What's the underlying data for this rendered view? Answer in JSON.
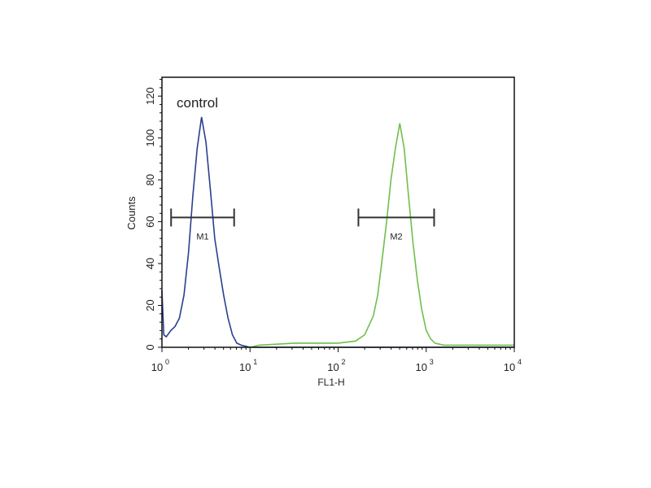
{
  "chart_data": {
    "type": "line",
    "title": "",
    "xlabel": "FL1-H",
    "ylabel": "Counts",
    "xscale": "log",
    "xlim": [
      1,
      10000
    ],
    "ylim": [
      0,
      129
    ],
    "x_ticks": [
      {
        "base": "10",
        "exp": "0",
        "value": 1
      },
      {
        "base": "10",
        "exp": "1",
        "value": 10
      },
      {
        "base": "10",
        "exp": "2",
        "value": 100
      },
      {
        "base": "10",
        "exp": "3",
        "value": 1000
      },
      {
        "base": "10",
        "exp": "4",
        "value": 10000
      }
    ],
    "y_ticks": [
      "0",
      "20",
      "40",
      "60",
      "80",
      "100",
      "120"
    ],
    "grid": false,
    "annotation": "control",
    "series": [
      {
        "color": "#2a3f8f",
        "points": [
          [
            1.0,
            27
          ],
          [
            1.05,
            6
          ],
          [
            1.12,
            5
          ],
          [
            1.26,
            8
          ],
          [
            1.41,
            10
          ],
          [
            1.58,
            14
          ],
          [
            1.78,
            25
          ],
          [
            2.0,
            45
          ],
          [
            2.24,
            72
          ],
          [
            2.51,
            95
          ],
          [
            2.82,
            110
          ],
          [
            3.16,
            98
          ],
          [
            3.55,
            75
          ],
          [
            3.98,
            52
          ],
          [
            4.47,
            38
          ],
          [
            5.01,
            25
          ],
          [
            5.62,
            14
          ],
          [
            6.31,
            6
          ],
          [
            7.08,
            2
          ],
          [
            7.94,
            1
          ],
          [
            10,
            0
          ],
          [
            10000,
            0
          ]
        ]
      },
      {
        "color": "#6fbf4a",
        "points": [
          [
            10,
            0
          ],
          [
            12.6,
            1
          ],
          [
            31.6,
            2
          ],
          [
            100,
            2
          ],
          [
            158,
            3
          ],
          [
            200,
            6
          ],
          [
            251,
            15
          ],
          [
            282,
            25
          ],
          [
            316,
            42
          ],
          [
            355,
            60
          ],
          [
            398,
            80
          ],
          [
            447,
            95
          ],
          [
            501,
            107
          ],
          [
            562,
            95
          ],
          [
            631,
            72
          ],
          [
            708,
            50
          ],
          [
            794,
            32
          ],
          [
            891,
            18
          ],
          [
            1000,
            8
          ],
          [
            1122,
            4
          ],
          [
            1259,
            2
          ],
          [
            1585,
            1
          ],
          [
            10000,
            1
          ]
        ]
      }
    ],
    "markers": [
      {
        "label": "M1",
        "range": [
          1.27,
          6.6
        ],
        "y": 62
      },
      {
        "label": "M2",
        "range": [
          170,
          1230
        ],
        "y": 62
      }
    ]
  }
}
